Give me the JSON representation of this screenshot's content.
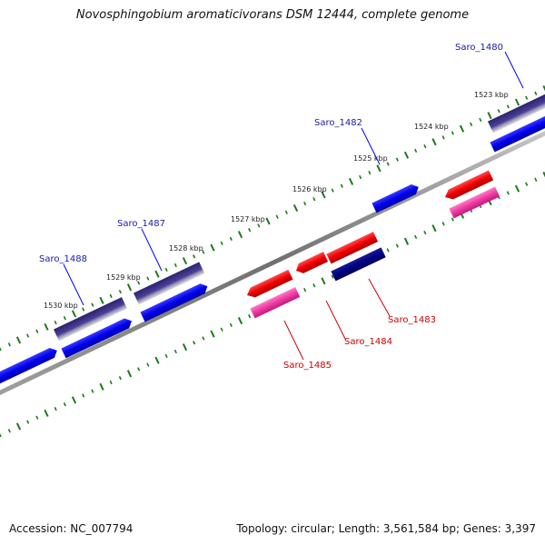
{
  "title": "Novosphingobium aromaticivorans DSM 12444, complete genome",
  "footer": {
    "accession": "Accession: NC_007794",
    "topology": "Topology: circular; Length: 3,561,584 bp; Genes: 3,397"
  },
  "colors": {
    "forward_gene": "#0000ee",
    "reverse_gene": "#ee0000",
    "forward_label": "#1a1aaa",
    "reverse_label": "#cc0000",
    "tick": "#1a7a1a",
    "backbone": "#808080"
  },
  "scale_labels": [
    "1523 kbp",
    "1524 kbp",
    "1525 kbp",
    "1526 kbp",
    "1527 kbp",
    "1528 kbp",
    "1529 kbp",
    "1530 kbp"
  ],
  "gene_labels": [
    {
      "text": "Saro_1480",
      "strand": "forward"
    },
    {
      "text": "Saro_1482",
      "strand": "forward"
    },
    {
      "text": "Saro_1487",
      "strand": "forward"
    },
    {
      "text": "Saro_1488",
      "strand": "forward"
    },
    {
      "text": "Saro_1483",
      "strand": "reverse"
    },
    {
      "text": "Saro_1484",
      "strand": "reverse"
    },
    {
      "text": "Saro_1485",
      "strand": "reverse"
    }
  ]
}
